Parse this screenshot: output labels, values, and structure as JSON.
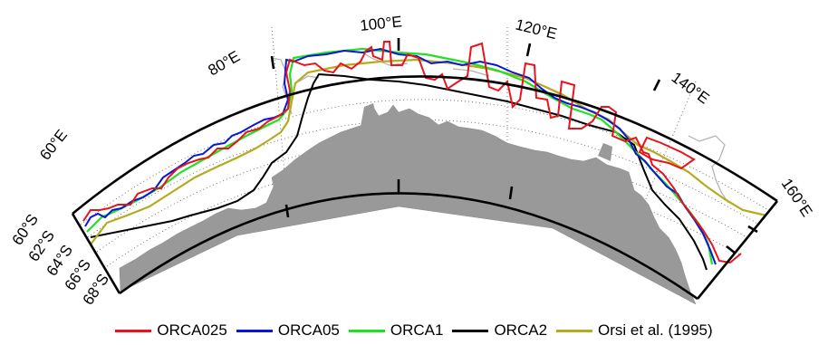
{
  "map": {
    "lon_labels": [
      "60°E",
      "80°E",
      "100°E",
      "120°E",
      "140°E",
      "160°E"
    ],
    "lat_labels": [
      "60°S",
      "62°S",
      "64°S",
      "66°S",
      "68°S"
    ]
  },
  "legend": [
    {
      "name": "ORCA025",
      "color": "#e8141c"
    },
    {
      "name": "ORCA05",
      "color": "#0a16d6"
    },
    {
      "name": "ORCA1",
      "color": "#22e022"
    },
    {
      "name": "ORCA2",
      "color": "#000000"
    },
    {
      "name": "Orsi et al. (1995)",
      "color": "#b6aa1e"
    }
  ],
  "colors": {
    "land": "#999999",
    "coast": "#b0b0b0",
    "frame": "#000000"
  }
}
